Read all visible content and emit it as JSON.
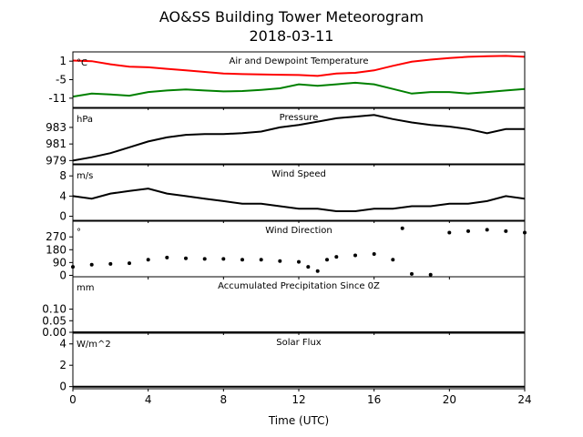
{
  "figure": {
    "title_line1": "AO&SS Building Tower Meteorogram",
    "title_line2": "2018-03-11",
    "xlabel": "Time (UTC)",
    "xlim": [
      0,
      24
    ],
    "xticks": [
      0,
      4,
      8,
      12,
      16,
      20,
      24
    ]
  },
  "chart_data": [
    {
      "type": "line",
      "title": "Air and Dewpoint Temperature",
      "unit": "°C",
      "ylim": [
        -14,
        4
      ],
      "yticks": [
        1,
        -5,
        -11
      ],
      "series": [
        {
          "color": "#ff0000",
          "x": [
            0,
            1,
            2,
            3,
            4,
            5,
            6,
            7,
            8,
            9,
            10,
            11,
            12,
            13,
            14,
            15,
            16,
            17,
            18,
            19,
            20,
            21,
            22,
            23,
            24
          ],
          "y": [
            1.2,
            1.0,
            0.0,
            -0.8,
            -1.0,
            -1.5,
            -2.0,
            -2.5,
            -3.0,
            -3.2,
            -3.3,
            -3.4,
            -3.5,
            -3.8,
            -3.0,
            -2.8,
            -2.0,
            -0.5,
            0.8,
            1.5,
            2.0,
            2.4,
            2.6,
            2.7,
            2.4
          ]
        },
        {
          "color": "#008000",
          "x": [
            0,
            1,
            2,
            3,
            4,
            5,
            6,
            7,
            8,
            9,
            10,
            11,
            12,
            13,
            14,
            15,
            16,
            17,
            18,
            19,
            20,
            21,
            22,
            23,
            24
          ],
          "y": [
            -10.5,
            -9.5,
            -9.8,
            -10.2,
            -9.0,
            -8.5,
            -8.2,
            -8.5,
            -8.8,
            -8.7,
            -8.3,
            -7.8,
            -6.5,
            -7.0,
            -6.5,
            -6.0,
            -6.5,
            -8.0,
            -9.5,
            -9.0,
            -9.0,
            -9.5,
            -9.0,
            -8.5,
            -8.0
          ]
        }
      ]
    },
    {
      "type": "line",
      "title": "Pressure",
      "unit": "hPa",
      "ylim": [
        978.6,
        985.3
      ],
      "yticks": [
        983,
        981,
        979
      ],
      "series": [
        {
          "color": "#000000",
          "x": [
            0,
            1,
            2,
            3,
            4,
            5,
            6,
            7,
            8,
            9,
            10,
            11,
            12,
            13,
            14,
            15,
            16,
            17,
            18,
            19,
            20,
            21,
            22,
            23,
            24
          ],
          "y": [
            979.0,
            979.4,
            979.9,
            980.6,
            981.3,
            981.8,
            982.1,
            982.2,
            982.2,
            982.3,
            982.5,
            983.0,
            983.3,
            983.7,
            984.1,
            984.3,
            984.5,
            984.0,
            983.6,
            983.3,
            983.1,
            982.8,
            982.3,
            982.8,
            982.8
          ]
        }
      ]
    },
    {
      "type": "line",
      "title": "Wind Speed",
      "unit": "m/s",
      "ylim": [
        -0.8,
        10.2
      ],
      "yticks": [
        8,
        4,
        0
      ],
      "series": [
        {
          "color": "#000000",
          "x": [
            0,
            1,
            2,
            3,
            4,
            5,
            6,
            7,
            8,
            9,
            10,
            11,
            12,
            13,
            14,
            15,
            16,
            17,
            18,
            19,
            20,
            21,
            22,
            23,
            24
          ],
          "y": [
            4.0,
            3.5,
            4.5,
            5.0,
            5.5,
            4.5,
            4.0,
            3.5,
            3.0,
            2.5,
            2.5,
            2.0,
            1.5,
            1.5,
            1.0,
            1.0,
            1.5,
            1.5,
            2.0,
            2.0,
            2.5,
            2.5,
            3.0,
            4.0,
            3.5
          ]
        }
      ]
    },
    {
      "type": "scatter",
      "title": "Wind Direction",
      "unit": "°",
      "ylim": [
        -10,
        380
      ],
      "yticks": [
        270,
        180,
        90,
        0
      ],
      "series": [
        {
          "color": "#000000",
          "x": [
            0,
            1,
            2,
            3,
            4,
            5,
            6,
            7,
            8,
            9,
            10,
            11,
            12,
            12.5,
            13,
            13.5,
            14,
            15,
            16,
            17,
            17.5,
            18,
            19,
            20,
            21,
            22,
            23,
            24
          ],
          "y": [
            60,
            75,
            80,
            85,
            110,
            125,
            120,
            115,
            115,
            110,
            110,
            100,
            95,
            60,
            30,
            110,
            130,
            140,
            150,
            110,
            330,
            10,
            5,
            300,
            310,
            320,
            310,
            300
          ]
        }
      ]
    },
    {
      "type": "line",
      "title": "Accumulated Precipitation Since 0Z",
      "unit": "mm",
      "ylim": [
        0,
        0.24
      ],
      "yticks": [
        0.1,
        0.05,
        0.0
      ],
      "series": [
        {
          "color": "#000000",
          "x": [
            0,
            24
          ],
          "y": [
            0,
            0
          ]
        }
      ]
    },
    {
      "type": "line",
      "title": "Solar Flux",
      "unit": "W/m^2",
      "ylim": [
        -0.2,
        5.0
      ],
      "yticks": [
        4,
        2,
        0
      ],
      "series": [
        {
          "color": "#000000",
          "x": [
            0,
            24
          ],
          "y": [
            0,
            0
          ]
        }
      ]
    }
  ]
}
